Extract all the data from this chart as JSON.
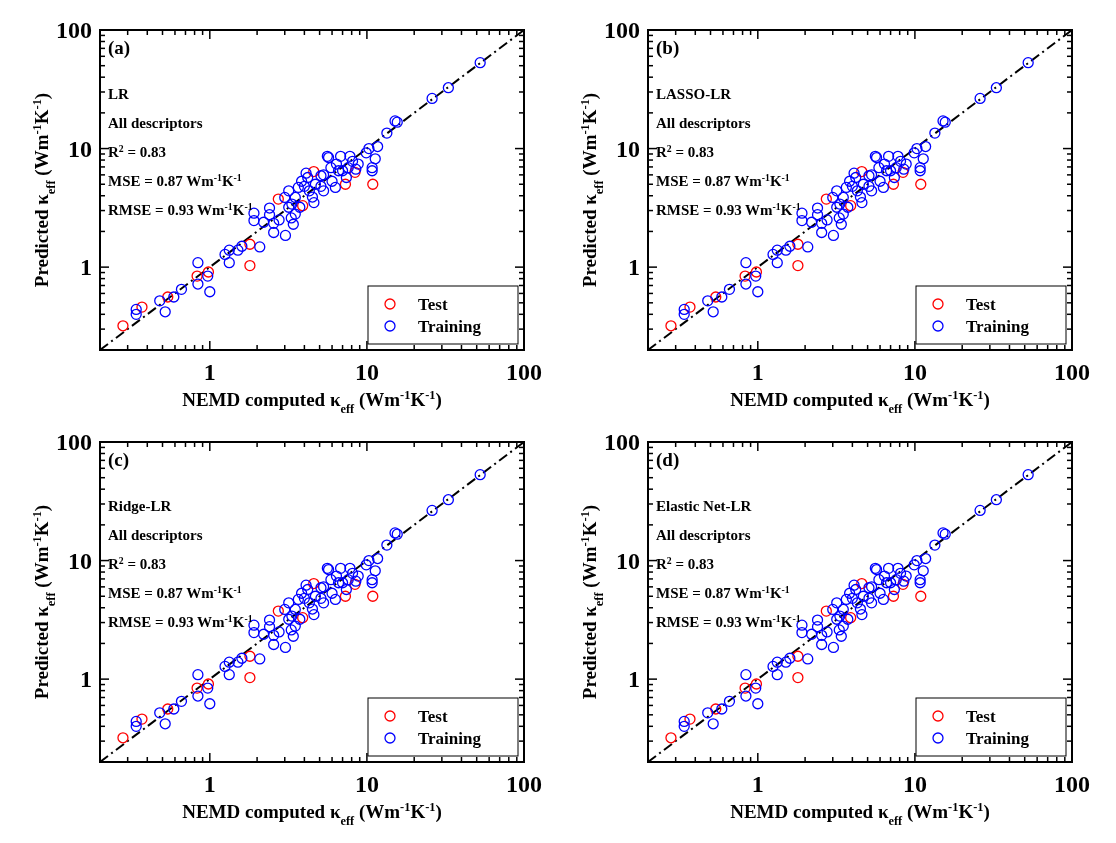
{
  "chart_data": [
    {
      "type": "scatter",
      "xlabel": "NEMD computed κ$_{eff}$ (Wm$^{-1}$K$^{-1}$)",
      "ylabel": "Predicted κ$_{eff}$ (Wm$^{-1}$K$^{-1}$)",
      "annotations": [
        "(a)",
        "LR",
        "All descriptors",
        "R$^{2}$ = 0.83",
        "MSE = 0.87 Wm$^{-1}$K$^{-1}$",
        "RMSE = 0.93 Wm$^{-1}$K$^{-1}$"
      ],
      "log": "xy",
      "legend": "bottom right",
      "xlim": [
        0.2,
        100
      ],
      "ylim": [
        0.2,
        100
      ],
      "xticks": [
        {
          "value": 0.2,
          "label": null
        },
        {
          "value": 0.3,
          "label": null
        },
        {
          "value": 0.4,
          "label": null
        },
        {
          "value": 0.5,
          "label": null
        },
        {
          "value": 0.6,
          "label": null
        },
        {
          "value": 0.7,
          "label": null
        },
        {
          "value": 0.8,
          "label": null
        },
        {
          "value": 0.9,
          "label": null
        },
        1,
        {
          "value": 2,
          "label": null
        },
        {
          "value": 3,
          "label": null
        },
        {
          "value": 4,
          "label": null
        },
        {
          "value": 5,
          "label": null
        },
        {
          "value": 6,
          "label": null
        },
        {
          "value": 7,
          "label": null
        },
        {
          "value": 8,
          "label": null
        },
        {
          "value": 9,
          "label": null
        },
        10,
        {
          "value": 20,
          "label": null
        },
        {
          "value": 30,
          "label": null
        },
        {
          "value": 40,
          "label": null
        },
        {
          "value": 50,
          "label": null
        },
        {
          "value": 60,
          "label": null
        },
        {
          "value": 70,
          "label": null
        },
        {
          "value": 80,
          "label": null
        },
        {
          "value": 90,
          "label": null
        },
        100
      ],
      "yticks": [
        {
          "value": 0.2,
          "label": null
        },
        {
          "value": 0.3,
          "label": null
        },
        {
          "value": 0.4,
          "label": null
        },
        {
          "value": 0.5,
          "label": null
        },
        {
          "value": 0.6,
          "label": null
        },
        {
          "value": 0.7,
          "label": null
        },
        {
          "value": 0.8,
          "label": null
        },
        {
          "value": 0.9,
          "label": null
        },
        1,
        {
          "value": 2,
          "label": null
        },
        {
          "value": 3,
          "label": null
        },
        {
          "value": 4,
          "label": null
        },
        {
          "value": 5,
          "label": null
        },
        {
          "value": 6,
          "label": null
        },
        {
          "value": 7,
          "label": null
        },
        {
          "value": 8,
          "label": null
        },
        {
          "value": 9,
          "label": null
        },
        10,
        {
          "value": 20,
          "label": null
        },
        {
          "value": 30,
          "label": null
        },
        {
          "value": 40,
          "label": null
        },
        {
          "value": 50,
          "label": null
        },
        {
          "value": 60,
          "label": null
        },
        {
          "value": 70,
          "label": null
        },
        {
          "value": 80,
          "label": null
        },
        {
          "value": 90,
          "label": null
        },
        100
      ],
      "series": [
        {
          "type": "line",
          "color": "#000000",
          "line_style": "dashed",
          "marker": "none",
          "x": [
            0.2,
            100
          ],
          "values": [
            0.2,
            100
          ]
        },
        {
          "name": "Test",
          "color": "#ff0000",
          "marker": "circle",
          "x": [
            0.28,
            0.37,
            0.54,
            0.83,
            0.98,
            1.8,
            1.8,
            2.73,
            4.59,
            7.3,
            10.9,
            8.4,
            3.9
          ],
          "values": [
            0.32,
            0.46,
            0.56,
            0.84,
            0.91,
            1.56,
            1.03,
            3.75,
            6.4,
            5.0,
            5.0,
            6.3,
            3.3
          ]
        },
        {
          "name": "Training",
          "color": "#0000ff",
          "marker": "circle",
          "x": [
            0.34,
            0.34,
            0.48,
            0.52,
            0.59,
            0.66,
            0.84,
            0.84,
            0.97,
            1.0,
            1.25,
            1.33,
            1.33,
            1.51,
            1.6,
            2.08,
            1.91,
            1.91,
            2.2,
            2.4,
            2.4,
            2.55,
            2.55,
            2.76,
            3.03,
            3.0,
            3.18,
            3.33,
            3.4,
            3.5,
            3.5,
            3.66,
            3.74,
            3.84,
            4.0,
            4.2,
            4.3,
            4.6,
            4.7,
            5.1,
            5.3,
            5.6,
            5.7,
            5.9,
            6.0,
            6.3,
            6.4,
            6.8,
            7.0,
            7.4,
            7.8,
            8.1,
            8.5,
            8.8,
            9.9,
            10.3,
            10.8,
            10.8,
            11.3,
            11.7,
            13.4,
            15.1,
            15.6,
            26,
            33,
            52.6,
            3.18,
            3.3,
            4.1,
            4.5,
            5.3,
            6.6,
            7.6,
            5.1
          ],
          "values": [
            0.4,
            0.44,
            0.52,
            0.42,
            0.56,
            0.65,
            1.09,
            0.72,
            0.84,
            0.62,
            1.28,
            1.39,
            1.09,
            1.39,
            1.5,
            1.48,
            2.85,
            2.47,
            2.39,
            3.15,
            2.77,
            2.34,
            1.96,
            2.5,
            1.85,
            3.87,
            4.4,
            3.4,
            2.3,
            2.8,
            3.87,
            4.7,
            3.2,
            5.3,
            4.8,
            5.7,
            4.4,
            3.5,
            5.0,
            5.9,
            4.4,
            8.6,
            8.4,
            6.9,
            5.3,
            4.7,
            7.4,
            8.6,
            6.5,
            5.7,
            8.6,
            7.8,
            6.7,
            7.4,
            9.2,
            10.0,
            6.9,
            6.5,
            8.2,
            10.4,
            13.5,
            17.1,
            16.7,
            26.5,
            32.6,
            53,
            3.2,
            2.6,
            6.2,
            3.9,
            6.0,
            6.5,
            6.9,
            4.8
          ]
        }
      ]
    },
    {
      "type": "scatter",
      "xlabel": "NEMD computed κ$_{eff}$ (Wm$^{-1}$K$^{-1}$)",
      "ylabel": "Predicted κ$_{eff}$ (Wm$^{-1}$K$^{-1}$)",
      "annotations": [
        "(b)",
        "LASSO-LR",
        "All descriptors",
        "R$^{2}$ = 0.83",
        "MSE = 0.87 Wm$^{-1}$K$^{-1}$",
        "RMSE = 0.93 Wm$^{-1}$K$^{-1}$"
      ],
      "log": "xy",
      "legend": "bottom right",
      "xlim": [
        0.2,
        100
      ],
      "ylim": [
        0.2,
        100
      ],
      "xticks": [
        {
          "value": 0.2,
          "label": null
        },
        {
          "value": 0.3,
          "label": null
        },
        {
          "value": 0.4,
          "label": null
        },
        {
          "value": 0.5,
          "label": null
        },
        {
          "value": 0.6,
          "label": null
        },
        {
          "value": 0.7,
          "label": null
        },
        {
          "value": 0.8,
          "label": null
        },
        {
          "value": 0.9,
          "label": null
        },
        1,
        {
          "value": 2,
          "label": null
        },
        {
          "value": 3,
          "label": null
        },
        {
          "value": 4,
          "label": null
        },
        {
          "value": 5,
          "label": null
        },
        {
          "value": 6,
          "label": null
        },
        {
          "value": 7,
          "label": null
        },
        {
          "value": 8,
          "label": null
        },
        {
          "value": 9,
          "label": null
        },
        10,
        {
          "value": 20,
          "label": null
        },
        {
          "value": 30,
          "label": null
        },
        {
          "value": 40,
          "label": null
        },
        {
          "value": 50,
          "label": null
        },
        {
          "value": 60,
          "label": null
        },
        {
          "value": 70,
          "label": null
        },
        {
          "value": 80,
          "label": null
        },
        {
          "value": 90,
          "label": null
        },
        100
      ],
      "yticks": [
        {
          "value": 0.2,
          "label": null
        },
        {
          "value": 0.3,
          "label": null
        },
        {
          "value": 0.4,
          "label": null
        },
        {
          "value": 0.5,
          "label": null
        },
        {
          "value": 0.6,
          "label": null
        },
        {
          "value": 0.7,
          "label": null
        },
        {
          "value": 0.8,
          "label": null
        },
        {
          "value": 0.9,
          "label": null
        },
        1,
        {
          "value": 2,
          "label": null
        },
        {
          "value": 3,
          "label": null
        },
        {
          "value": 4,
          "label": null
        },
        {
          "value": 5,
          "label": null
        },
        {
          "value": 6,
          "label": null
        },
        {
          "value": 7,
          "label": null
        },
        {
          "value": 8,
          "label": null
        },
        {
          "value": 9,
          "label": null
        },
        10,
        {
          "value": 20,
          "label": null
        },
        {
          "value": 30,
          "label": null
        },
        {
          "value": 40,
          "label": null
        },
        {
          "value": 50,
          "label": null
        },
        {
          "value": 60,
          "label": null
        },
        {
          "value": 70,
          "label": null
        },
        {
          "value": 80,
          "label": null
        },
        {
          "value": 90,
          "label": null
        },
        100
      ],
      "series": [
        {
          "type": "line",
          "color": "#000000",
          "line_style": "dashed",
          "marker": "none",
          "x": [
            0.2,
            100
          ],
          "values": [
            0.2,
            100
          ]
        },
        {
          "name": "Test",
          "color": "#ff0000",
          "marker": "circle",
          "x": [
            0.28,
            0.37,
            0.54,
            0.83,
            0.98,
            1.8,
            1.8,
            2.73,
            4.59,
            7.3,
            10.9,
            8.4,
            3.9
          ],
          "values": [
            0.32,
            0.46,
            0.56,
            0.84,
            0.91,
            1.56,
            1.03,
            3.75,
            6.4,
            5.0,
            5.0,
            6.3,
            3.3
          ]
        },
        {
          "name": "Training",
          "color": "#0000ff",
          "marker": "circle",
          "x": [
            0.34,
            0.34,
            0.48,
            0.52,
            0.59,
            0.66,
            0.84,
            0.84,
            0.97,
            1.0,
            1.25,
            1.33,
            1.33,
            1.51,
            1.6,
            2.08,
            1.91,
            1.91,
            2.2,
            2.4,
            2.4,
            2.55,
            2.55,
            2.76,
            3.03,
            3.0,
            3.18,
            3.33,
            3.4,
            3.5,
            3.5,
            3.66,
            3.74,
            3.84,
            4.0,
            4.2,
            4.3,
            4.6,
            4.7,
            5.1,
            5.3,
            5.6,
            5.7,
            5.9,
            6.0,
            6.3,
            6.4,
            6.8,
            7.0,
            7.4,
            7.8,
            8.1,
            8.5,
            8.8,
            9.9,
            10.3,
            10.8,
            10.8,
            11.3,
            11.7,
            13.4,
            15.1,
            15.6,
            26,
            33,
            52.6,
            3.18,
            3.3,
            4.1,
            4.5,
            5.3,
            6.6,
            7.6,
            5.1
          ],
          "values": [
            0.4,
            0.44,
            0.52,
            0.42,
            0.56,
            0.65,
            1.09,
            0.72,
            0.84,
            0.62,
            1.28,
            1.39,
            1.09,
            1.39,
            1.5,
            1.48,
            2.85,
            2.47,
            2.39,
            3.15,
            2.77,
            2.34,
            1.96,
            2.5,
            1.85,
            3.87,
            4.4,
            3.4,
            2.3,
            2.8,
            3.87,
            4.7,
            3.2,
            5.3,
            4.8,
            5.7,
            4.4,
            3.5,
            5.0,
            5.9,
            4.4,
            8.6,
            8.4,
            6.9,
            5.3,
            4.7,
            7.4,
            8.6,
            6.5,
            5.7,
            8.6,
            7.8,
            6.7,
            7.4,
            9.2,
            10.0,
            6.9,
            6.5,
            8.2,
            10.4,
            13.5,
            17.1,
            16.7,
            26.5,
            32.6,
            53,
            3.2,
            2.6,
            6.2,
            3.9,
            6.0,
            6.5,
            6.9,
            4.8
          ]
        }
      ]
    },
    {
      "type": "scatter",
      "xlabel": "NEMD computed κ$_{eff}$ (Wm$^{-1}$K$^{-1}$)",
      "ylabel": "Predicted κ$_{eff}$ (Wm$^{-1}$K$^{-1}$)",
      "annotations": [
        "(c)",
        "Ridge-LR",
        "All descriptors",
        "R$^{2}$ = 0.83",
        "MSE = 0.87 Wm$^{-1}$K$^{-1}$",
        "RMSE = 0.93 Wm$^{-1}$K$^{-1}$"
      ],
      "log": "xy",
      "legend": "bottom right",
      "xlim": [
        0.2,
        100
      ],
      "ylim": [
        0.2,
        100
      ],
      "xticks": [
        {
          "value": 0.2,
          "label": null
        },
        {
          "value": 0.3,
          "label": null
        },
        {
          "value": 0.4,
          "label": null
        },
        {
          "value": 0.5,
          "label": null
        },
        {
          "value": 0.6,
          "label": null
        },
        {
          "value": 0.7,
          "label": null
        },
        {
          "value": 0.8,
          "label": null
        },
        {
          "value": 0.9,
          "label": null
        },
        1,
        {
          "value": 2,
          "label": null
        },
        {
          "value": 3,
          "label": null
        },
        {
          "value": 4,
          "label": null
        },
        {
          "value": 5,
          "label": null
        },
        {
          "value": 6,
          "label": null
        },
        {
          "value": 7,
          "label": null
        },
        {
          "value": 8,
          "label": null
        },
        {
          "value": 9,
          "label": null
        },
        10,
        {
          "value": 20,
          "label": null
        },
        {
          "value": 30,
          "label": null
        },
        {
          "value": 40,
          "label": null
        },
        {
          "value": 50,
          "label": null
        },
        {
          "value": 60,
          "label": null
        },
        {
          "value": 70,
          "label": null
        },
        {
          "value": 80,
          "label": null
        },
        {
          "value": 90,
          "label": null
        },
        100
      ],
      "yticks": [
        {
          "value": 0.2,
          "label": null
        },
        {
          "value": 0.3,
          "label": null
        },
        {
          "value": 0.4,
          "label": null
        },
        {
          "value": 0.5,
          "label": null
        },
        {
          "value": 0.6,
          "label": null
        },
        {
          "value": 0.7,
          "label": null
        },
        {
          "value": 0.8,
          "label": null
        },
        {
          "value": 0.9,
          "label": null
        },
        1,
        {
          "value": 2,
          "label": null
        },
        {
          "value": 3,
          "label": null
        },
        {
          "value": 4,
          "label": null
        },
        {
          "value": 5,
          "label": null
        },
        {
          "value": 6,
          "label": null
        },
        {
          "value": 7,
          "label": null
        },
        {
          "value": 8,
          "label": null
        },
        {
          "value": 9,
          "label": null
        },
        10,
        {
          "value": 20,
          "label": null
        },
        {
          "value": 30,
          "label": null
        },
        {
          "value": 40,
          "label": null
        },
        {
          "value": 50,
          "label": null
        },
        {
          "value": 60,
          "label": null
        },
        {
          "value": 70,
          "label": null
        },
        {
          "value": 80,
          "label": null
        },
        {
          "value": 90,
          "label": null
        },
        100
      ],
      "series": [
        {
          "type": "line",
          "color": "#000000",
          "line_style": "dashed",
          "marker": "none",
          "x": [
            0.2,
            100
          ],
          "values": [
            0.2,
            100
          ]
        },
        {
          "name": "Test",
          "color": "#ff0000",
          "marker": "circle",
          "x": [
            0.28,
            0.37,
            0.54,
            0.83,
            0.98,
            1.8,
            1.8,
            2.73,
            4.59,
            7.3,
            10.9,
            8.4,
            3.9
          ],
          "values": [
            0.32,
            0.46,
            0.56,
            0.84,
            0.91,
            1.56,
            1.03,
            3.75,
            6.4,
            5.0,
            5.0,
            6.3,
            3.3
          ]
        },
        {
          "name": "Training",
          "color": "#0000ff",
          "marker": "circle",
          "x": [
            0.34,
            0.34,
            0.48,
            0.52,
            0.59,
            0.66,
            0.84,
            0.84,
            0.97,
            1.0,
            1.25,
            1.33,
            1.33,
            1.51,
            1.6,
            2.08,
            1.91,
            1.91,
            2.2,
            2.4,
            2.4,
            2.55,
            2.55,
            2.76,
            3.03,
            3.0,
            3.18,
            3.33,
            3.4,
            3.5,
            3.5,
            3.66,
            3.74,
            3.84,
            4.0,
            4.2,
            4.3,
            4.6,
            4.7,
            5.1,
            5.3,
            5.6,
            5.7,
            5.9,
            6.0,
            6.3,
            6.4,
            6.8,
            7.0,
            7.4,
            7.8,
            8.1,
            8.5,
            8.8,
            9.9,
            10.3,
            10.8,
            10.8,
            11.3,
            11.7,
            13.4,
            15.1,
            15.6,
            26,
            33,
            52.6,
            3.18,
            3.3,
            4.1,
            4.5,
            5.3,
            6.6,
            7.6,
            5.1
          ],
          "values": [
            0.4,
            0.44,
            0.52,
            0.42,
            0.56,
            0.65,
            1.09,
            0.72,
            0.84,
            0.62,
            1.28,
            1.39,
            1.09,
            1.39,
            1.5,
            1.48,
            2.85,
            2.47,
            2.39,
            3.15,
            2.77,
            2.34,
            1.96,
            2.5,
            1.85,
            3.87,
            4.4,
            3.4,
            2.3,
            2.8,
            3.87,
            4.7,
            3.2,
            5.3,
            4.8,
            5.7,
            4.4,
            3.5,
            5.0,
            5.9,
            4.4,
            8.6,
            8.4,
            6.9,
            5.3,
            4.7,
            7.4,
            8.6,
            6.5,
            5.7,
            8.6,
            7.8,
            6.7,
            7.4,
            9.2,
            10.0,
            6.9,
            6.5,
            8.2,
            10.4,
            13.5,
            17.1,
            16.7,
            26.5,
            32.6,
            53,
            3.2,
            2.6,
            6.2,
            3.9,
            6.0,
            6.5,
            6.9,
            4.8
          ]
        }
      ]
    },
    {
      "type": "scatter",
      "xlabel": "NEMD computed κ$_{eff}$ (Wm$^{-1}$K$^{-1}$)",
      "ylabel": "Predicted κ$_{eff}$ (Wm$^{-1}$K$^{-1}$)",
      "annotations": [
        "(d)",
        "Elastic Net-LR",
        "All descriptors",
        "R$^{2}$ = 0.83",
        "MSE = 0.87 Wm$^{-1}$K$^{-1}$",
        "RMSE = 0.93 Wm$^{-1}$K$^{-1}$"
      ],
      "log": "xy",
      "legend": "bottom right",
      "xlim": [
        0.2,
        100
      ],
      "ylim": [
        0.2,
        100
      ],
      "xticks": [
        {
          "value": 0.2,
          "label": null
        },
        {
          "value": 0.3,
          "label": null
        },
        {
          "value": 0.4,
          "label": null
        },
        {
          "value": 0.5,
          "label": null
        },
        {
          "value": 0.6,
          "label": null
        },
        {
          "value": 0.7,
          "label": null
        },
        {
          "value": 0.8,
          "label": null
        },
        {
          "value": 0.9,
          "label": null
        },
        1,
        {
          "value": 2,
          "label": null
        },
        {
          "value": 3,
          "label": null
        },
        {
          "value": 4,
          "label": null
        },
        {
          "value": 5,
          "label": null
        },
        {
          "value": 6,
          "label": null
        },
        {
          "value": 7,
          "label": null
        },
        {
          "value": 8,
          "label": null
        },
        {
          "value": 9,
          "label": null
        },
        10,
        {
          "value": 20,
          "label": null
        },
        {
          "value": 30,
          "label": null
        },
        {
          "value": 40,
          "label": null
        },
        {
          "value": 50,
          "label": null
        },
        {
          "value": 60,
          "label": null
        },
        {
          "value": 70,
          "label": null
        },
        {
          "value": 80,
          "label": null
        },
        {
          "value": 90,
          "label": null
        },
        100
      ],
      "yticks": [
        {
          "value": 0.2,
          "label": null
        },
        {
          "value": 0.3,
          "label": null
        },
        {
          "value": 0.4,
          "label": null
        },
        {
          "value": 0.5,
          "label": null
        },
        {
          "value": 0.6,
          "label": null
        },
        {
          "value": 0.7,
          "label": null
        },
        {
          "value": 0.8,
          "label": null
        },
        {
          "value": 0.9,
          "label": null
        },
        1,
        {
          "value": 2,
          "label": null
        },
        {
          "value": 3,
          "label": null
        },
        {
          "value": 4,
          "label": null
        },
        {
          "value": 5,
          "label": null
        },
        {
          "value": 6,
          "label": null
        },
        {
          "value": 7,
          "label": null
        },
        {
          "value": 8,
          "label": null
        },
        {
          "value": 9,
          "label": null
        },
        10,
        {
          "value": 20,
          "label": null
        },
        {
          "value": 30,
          "label": null
        },
        {
          "value": 40,
          "label": null
        },
        {
          "value": 50,
          "label": null
        },
        {
          "value": 60,
          "label": null
        },
        {
          "value": 70,
          "label": null
        },
        {
          "value": 80,
          "label": null
        },
        {
          "value": 90,
          "label": null
        },
        100
      ],
      "series": [
        {
          "type": "line",
          "color": "#000000",
          "line_style": "dashed",
          "marker": "none",
          "x": [
            0.2,
            100
          ],
          "values": [
            0.2,
            100
          ]
        },
        {
          "name": "Test",
          "color": "#ff0000",
          "marker": "circle",
          "x": [
            0.28,
            0.37,
            0.54,
            0.83,
            0.98,
            1.8,
            1.8,
            2.73,
            4.59,
            7.3,
            10.9,
            8.4,
            3.9
          ],
          "values": [
            0.32,
            0.46,
            0.56,
            0.84,
            0.91,
            1.56,
            1.03,
            3.75,
            6.4,
            5.0,
            5.0,
            6.3,
            3.3
          ]
        },
        {
          "name": "Training",
          "color": "#0000ff",
          "marker": "circle",
          "x": [
            0.34,
            0.34,
            0.48,
            0.52,
            0.59,
            0.66,
            0.84,
            0.84,
            0.97,
            1.0,
            1.25,
            1.33,
            1.33,
            1.51,
            1.6,
            2.08,
            1.91,
            1.91,
            2.2,
            2.4,
            2.4,
            2.55,
            2.55,
            2.76,
            3.03,
            3.0,
            3.18,
            3.33,
            3.4,
            3.5,
            3.5,
            3.66,
            3.74,
            3.84,
            4.0,
            4.2,
            4.3,
            4.6,
            4.7,
            5.1,
            5.3,
            5.6,
            5.7,
            5.9,
            6.0,
            6.3,
            6.4,
            6.8,
            7.0,
            7.4,
            7.8,
            8.1,
            8.5,
            8.8,
            9.9,
            10.3,
            10.8,
            10.8,
            11.3,
            11.7,
            13.4,
            15.1,
            15.6,
            26,
            33,
            52.6,
            3.18,
            3.3,
            4.1,
            4.5,
            5.3,
            6.6,
            7.6,
            5.1
          ],
          "values": [
            0.4,
            0.44,
            0.52,
            0.42,
            0.56,
            0.65,
            1.09,
            0.72,
            0.84,
            0.62,
            1.28,
            1.39,
            1.09,
            1.39,
            1.5,
            1.48,
            2.85,
            2.47,
            2.39,
            3.15,
            2.77,
            2.34,
            1.96,
            2.5,
            1.85,
            3.87,
            4.4,
            3.4,
            2.3,
            2.8,
            3.87,
            4.7,
            3.2,
            5.3,
            4.8,
            5.7,
            4.4,
            3.5,
            5.0,
            5.9,
            4.4,
            8.6,
            8.4,
            6.9,
            5.3,
            4.7,
            7.4,
            8.6,
            6.5,
            5.7,
            8.6,
            7.8,
            6.7,
            7.4,
            9.2,
            10.0,
            6.9,
            6.5,
            8.2,
            10.4,
            13.5,
            17.1,
            16.7,
            26.5,
            32.6,
            53,
            3.2,
            2.6,
            6.2,
            3.9,
            6.0,
            6.5,
            6.9,
            4.8
          ]
        }
      ]
    }
  ]
}
